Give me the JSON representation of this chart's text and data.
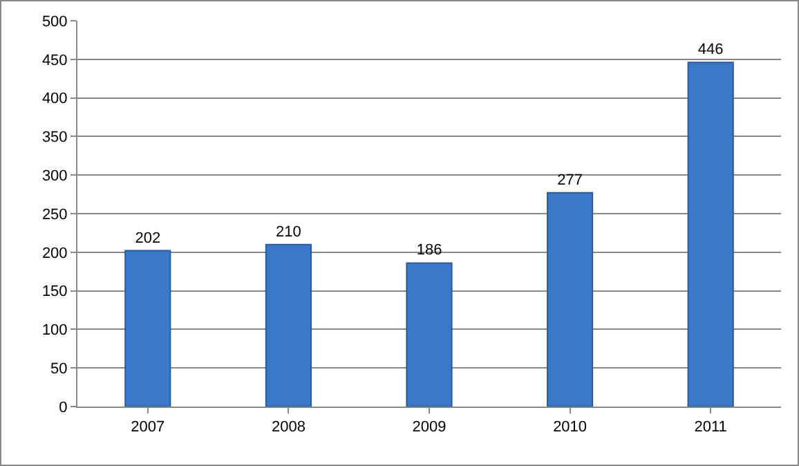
{
  "chart_data": {
    "type": "bar",
    "categories": [
      "2007",
      "2008",
      "2009",
      "2010",
      "2011"
    ],
    "values": [
      202,
      210,
      186,
      277,
      446
    ],
    "color": "#3b78c9",
    "ylim": [
      0,
      500
    ],
    "yticks": [
      0,
      50,
      100,
      150,
      200,
      250,
      300,
      350,
      400,
      450,
      500
    ],
    "grid": "y",
    "data_labels": true,
    "legend": false
  }
}
